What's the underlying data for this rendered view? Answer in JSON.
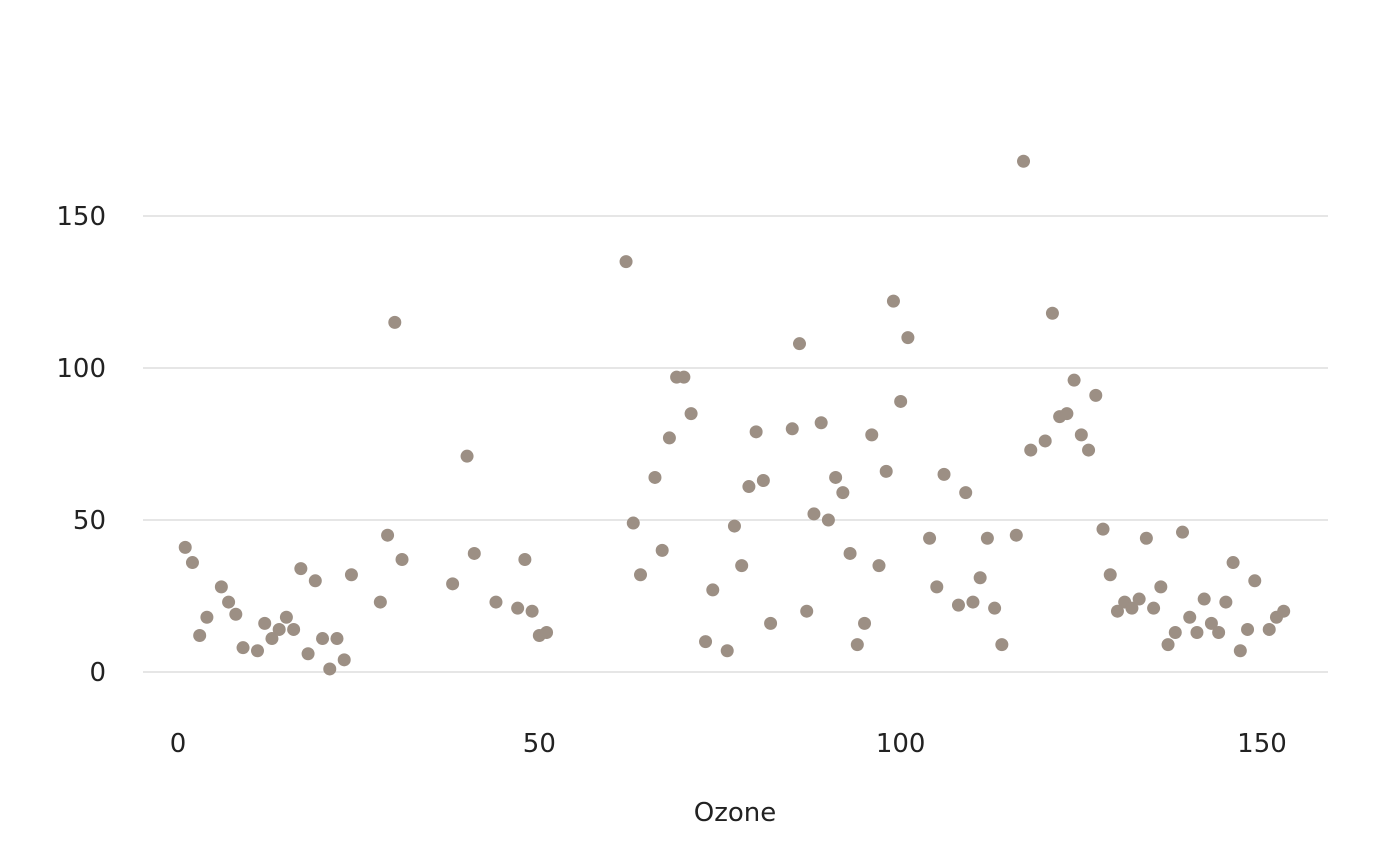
{
  "chart_data": {
    "type": "scatter",
    "title": "",
    "xlabel": "Ozone",
    "ylabel": "",
    "xlim": [
      -10,
      160
    ],
    "ylim": [
      -18,
      190
    ],
    "x_ticks": [
      0,
      50,
      100,
      150
    ],
    "y_ticks": [
      0,
      50,
      100,
      150
    ],
    "grid": "horizontal",
    "point_color": "#9c8f84",
    "points": [
      [
        1,
        41
      ],
      [
        2,
        36
      ],
      [
        3,
        12
      ],
      [
        4,
        18
      ],
      [
        6,
        28
      ],
      [
        7,
        23
      ],
      [
        8,
        19
      ],
      [
        9,
        8
      ],
      [
        11,
        7
      ],
      [
        12,
        16
      ],
      [
        13,
        11
      ],
      [
        14,
        14
      ],
      [
        15,
        18
      ],
      [
        16,
        14
      ],
      [
        17,
        34
      ],
      [
        18,
        6
      ],
      [
        19,
        30
      ],
      [
        20,
        11
      ],
      [
        21,
        1
      ],
      [
        22,
        11
      ],
      [
        23,
        4
      ],
      [
        24,
        32
      ],
      [
        28,
        23
      ],
      [
        29,
        45
      ],
      [
        30,
        115
      ],
      [
        31,
        37
      ],
      [
        38,
        29
      ],
      [
        40,
        71
      ],
      [
        41,
        39
      ],
      [
        44,
        23
      ],
      [
        47,
        21
      ],
      [
        48,
        37
      ],
      [
        49,
        20
      ],
      [
        50,
        12
      ],
      [
        51,
        13
      ],
      [
        62,
        135
      ],
      [
        63,
        49
      ],
      [
        64,
        32
      ],
      [
        66,
        64
      ],
      [
        67,
        40
      ],
      [
        68,
        77
      ],
      [
        69,
        97
      ],
      [
        70,
        97
      ],
      [
        71,
        85
      ],
      [
        73,
        10
      ],
      [
        74,
        27
      ],
      [
        76,
        7
      ],
      [
        77,
        48
      ],
      [
        78,
        35
      ],
      [
        79,
        61
      ],
      [
        80,
        79
      ],
      [
        81,
        63
      ],
      [
        82,
        16
      ],
      [
        85,
        80
      ],
      [
        86,
        108
      ],
      [
        87,
        20
      ],
      [
        88,
        52
      ],
      [
        89,
        82
      ],
      [
        90,
        50
      ],
      [
        91,
        64
      ],
      [
        92,
        59
      ],
      [
        93,
        39
      ],
      [
        94,
        9
      ],
      [
        95,
        16
      ],
      [
        96,
        78
      ],
      [
        97,
        35
      ],
      [
        98,
        66
      ],
      [
        99,
        122
      ],
      [
        100,
        89
      ],
      [
        101,
        110
      ],
      [
        104,
        44
      ],
      [
        105,
        28
      ],
      [
        106,
        65
      ],
      [
        108,
        22
      ],
      [
        109,
        59
      ],
      [
        110,
        23
      ],
      [
        111,
        31
      ],
      [
        112,
        44
      ],
      [
        113,
        21
      ],
      [
        114,
        9
      ],
      [
        116,
        45
      ],
      [
        117,
        168
      ],
      [
        118,
        73
      ],
      [
        120,
        76
      ],
      [
        121,
        118
      ],
      [
        122,
        84
      ],
      [
        123,
        85
      ],
      [
        124,
        96
      ],
      [
        125,
        78
      ],
      [
        126,
        73
      ],
      [
        127,
        91
      ],
      [
        128,
        47
      ],
      [
        129,
        32
      ],
      [
        130,
        20
      ],
      [
        131,
        23
      ],
      [
        132,
        21
      ],
      [
        133,
        24
      ],
      [
        134,
        44
      ],
      [
        135,
        21
      ],
      [
        136,
        28
      ],
      [
        137,
        9
      ],
      [
        138,
        13
      ],
      [
        139,
        46
      ],
      [
        140,
        18
      ],
      [
        141,
        13
      ],
      [
        142,
        24
      ],
      [
        143,
        16
      ],
      [
        144,
        13
      ],
      [
        145,
        23
      ],
      [
        146,
        36
      ],
      [
        147,
        7
      ],
      [
        148,
        14
      ],
      [
        149,
        30
      ],
      [
        151,
        14
      ],
      [
        152,
        18
      ],
      [
        153,
        20
      ]
    ]
  }
}
